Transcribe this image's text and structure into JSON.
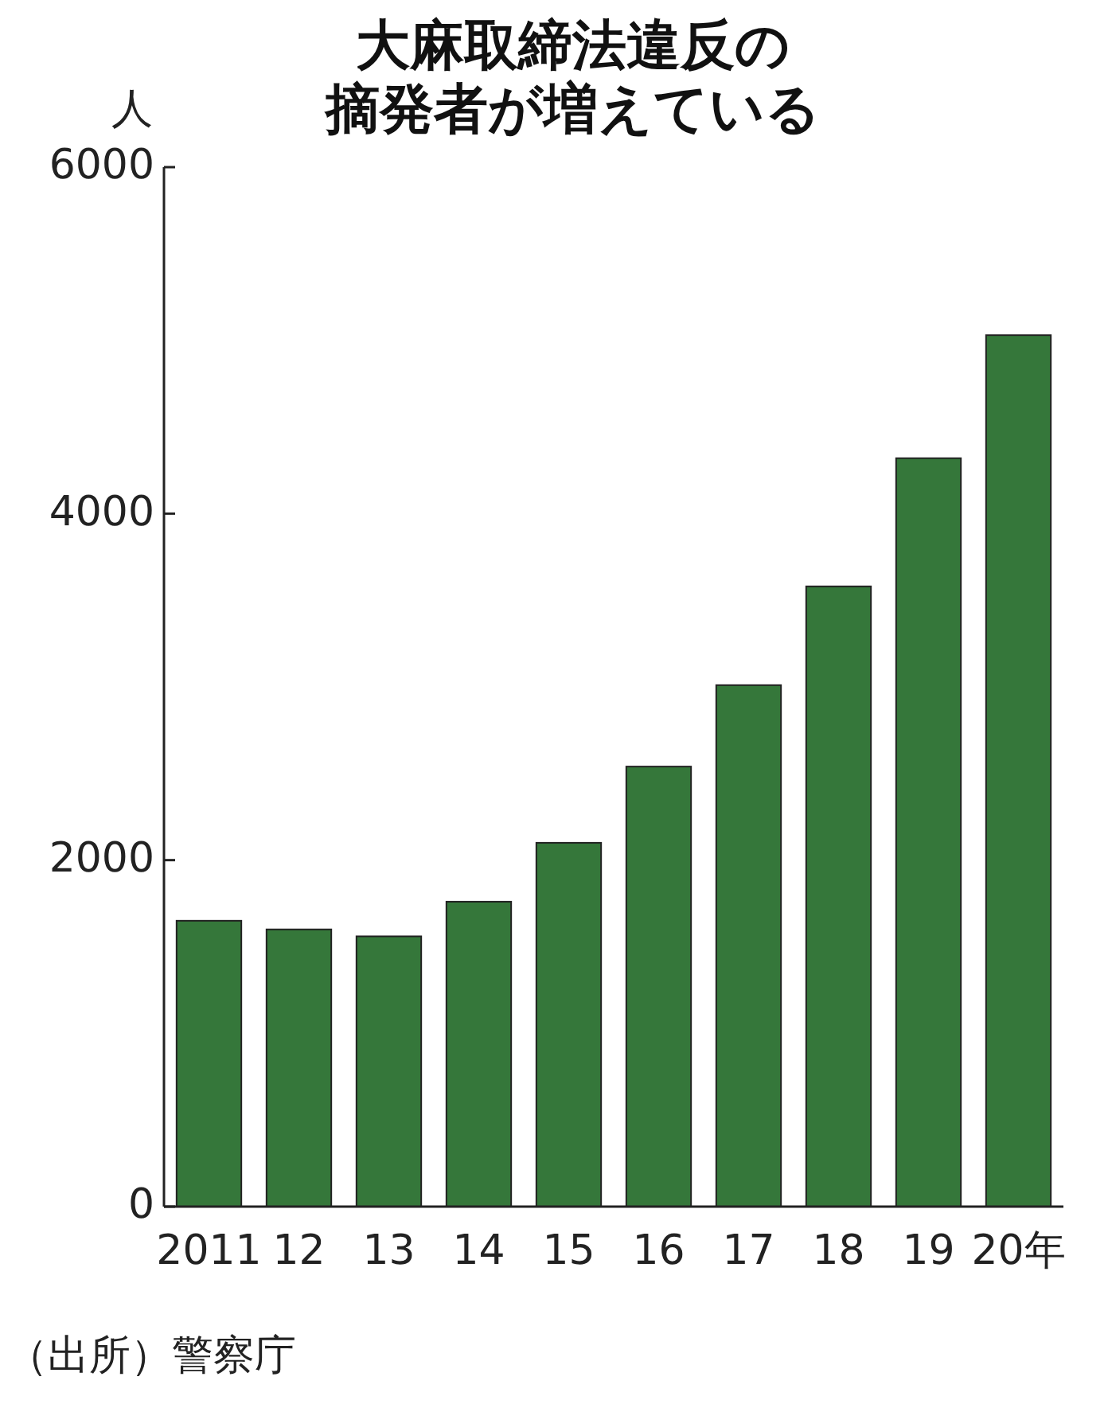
{
  "chart_data": {
    "type": "bar",
    "title": "大麻取締法違反の摘発者が増えている",
    "ylabel": "人",
    "categories": [
      "2011",
      "12",
      "13",
      "14",
      "15",
      "16",
      "17",
      "18",
      "19",
      "20年"
    ],
    "values": [
      1650,
      1600,
      1560,
      1760,
      2100,
      2540,
      3010,
      3580,
      4320,
      5030
    ],
    "color": "#35773a",
    "ylim": [
      0,
      6000
    ],
    "yticks": [
      0,
      2000,
      4000,
      6000
    ],
    "grid": false,
    "annotations": [
      "（出所）警察庁"
    ]
  }
}
